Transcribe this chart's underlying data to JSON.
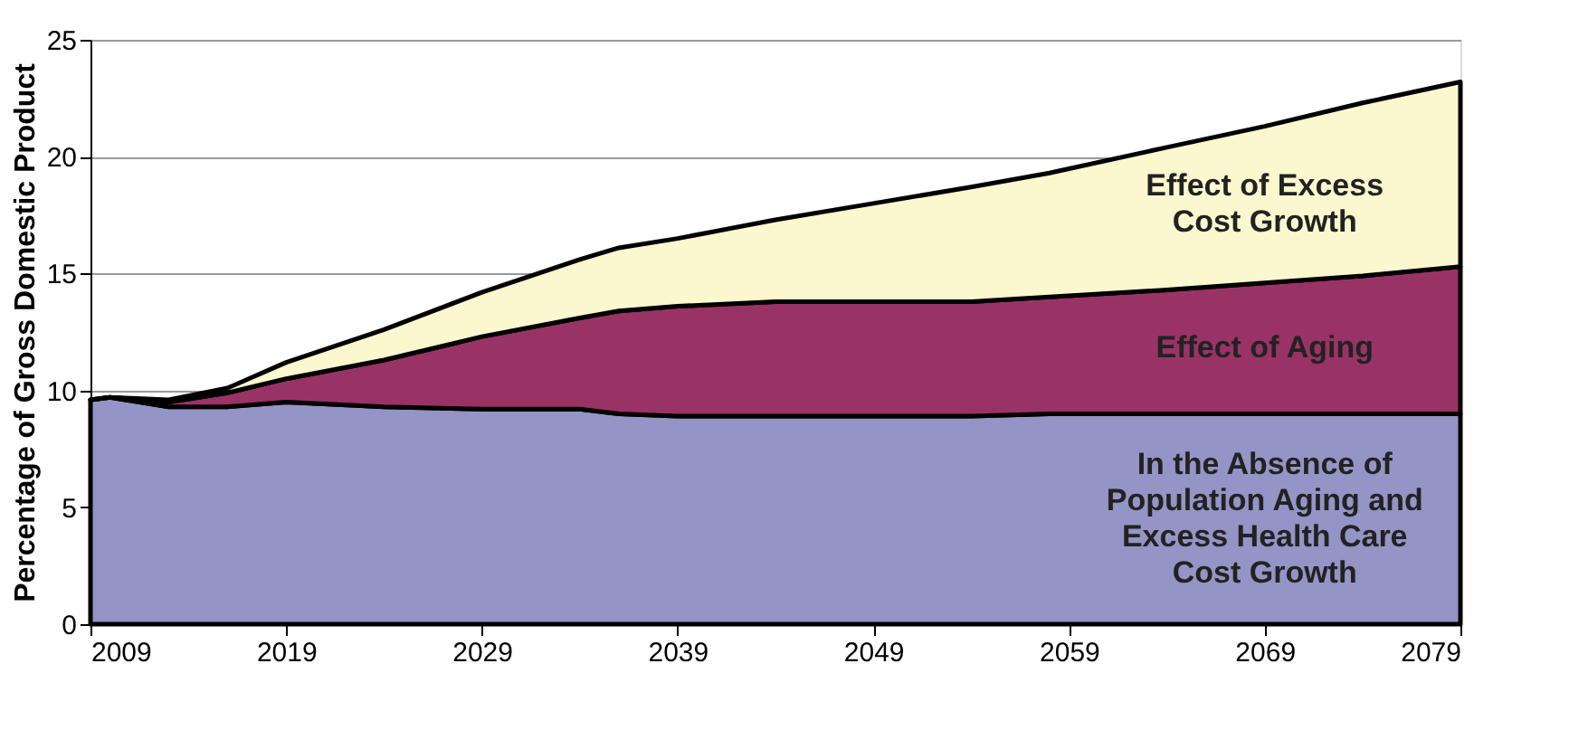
{
  "chart_data": {
    "type": "area",
    "stacked": true,
    "ylabel": "Percentage of Gross Domestic Product",
    "x": [
      2009,
      2010,
      2013,
      2016,
      2019,
      2024,
      2029,
      2034,
      2036,
      2039,
      2044,
      2049,
      2054,
      2058,
      2064,
      2069,
      2074,
      2079
    ],
    "series": [
      {
        "name": "In the Absence of Population Aging and Excess Health Care Cost Growth",
        "color": "#9494c6",
        "values": [
          9.6,
          9.7,
          9.3,
          9.3,
          9.5,
          9.3,
          9.2,
          9.2,
          9.0,
          8.9,
          8.9,
          8.9,
          8.9,
          9.0,
          9.0,
          9.0,
          9.0,
          9.0
        ]
      },
      {
        "name": "Effect of Aging",
        "color": "#993366",
        "values": [
          0,
          0,
          0.2,
          0.6,
          1.0,
          2.0,
          3.1,
          3.9,
          4.4,
          4.7,
          4.9,
          4.9,
          4.9,
          5.0,
          5.3,
          5.6,
          5.9,
          6.3
        ]
      },
      {
        "name": "Effect of Excess Cost Growth",
        "color": "#fbf8cf",
        "values": [
          0,
          0,
          0.1,
          0.2,
          0.7,
          1.3,
          1.9,
          2.5,
          2.7,
          2.9,
          3.5,
          4.2,
          4.9,
          5.3,
          6.1,
          6.7,
          7.4,
          7.9
        ]
      }
    ],
    "xlim": [
      2009,
      2079
    ],
    "xticks": [
      2009,
      2019,
      2029,
      2039,
      2049,
      2059,
      2069,
      2079
    ],
    "ylim": [
      0,
      25
    ],
    "yticks": [
      0,
      5,
      10,
      15,
      20,
      25
    ],
    "grid": "y",
    "legend": false
  }
}
